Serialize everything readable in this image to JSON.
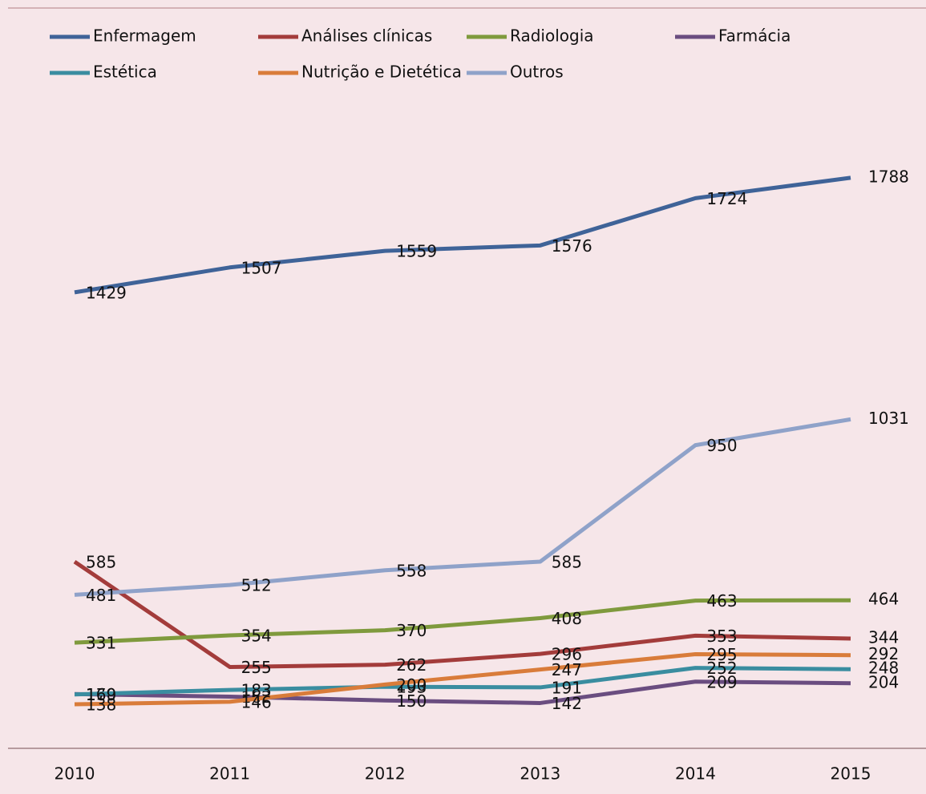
{
  "chart_data": {
    "type": "line",
    "categories": [
      "2010",
      "2011",
      "2012",
      "2013",
      "2014",
      "2015"
    ],
    "series": [
      {
        "name": "Enfermagem",
        "color": "#3f6398",
        "values": [
          1429,
          1507,
          1559,
          1576,
          1724,
          1788
        ]
      },
      {
        "name": "Análises clínicas",
        "color": "#a33c3b",
        "values": [
          585,
          255,
          262,
          296,
          353,
          344
        ]
      },
      {
        "name": "Radiologia",
        "color": "#7f9a3d",
        "values": [
          331,
          354,
          370,
          408,
          463,
          464
        ]
      },
      {
        "name": "Farmácia",
        "color": "#6a4d80",
        "values": [
          170,
          162,
          150,
          142,
          209,
          204
        ]
      },
      {
        "name": "Estética",
        "color": "#3a8da0",
        "values": [
          169,
          183,
          193,
          191,
          252,
          248
        ]
      },
      {
        "name": "Nutrição e Dietética",
        "color": "#d97c3a",
        "values": [
          138,
          146,
          200,
          247,
          295,
          292
        ]
      },
      {
        "name": "Outros",
        "color": "#8fa2c9",
        "values": [
          481,
          512,
          558,
          585,
          950,
          1031
        ]
      }
    ],
    "ylim": [
      0,
      2320
    ],
    "legend": "top"
  }
}
